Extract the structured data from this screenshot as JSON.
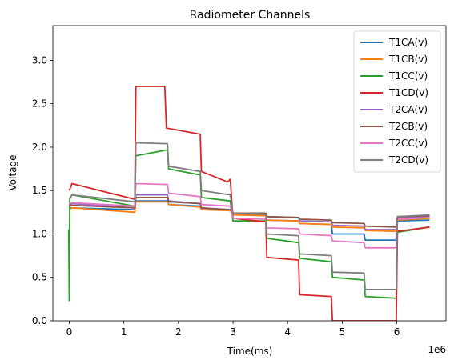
{
  "chart_data": {
    "type": "line",
    "title": "Radiometer Channels",
    "xlabel": "Time(ms)",
    "ylabel": "Voltage",
    "x_offset_label": "1e6",
    "xlim": [
      -300000,
      6900000
    ],
    "ylim": [
      0,
      3.4
    ],
    "xticks": [
      0,
      1000000,
      2000000,
      3000000,
      4000000,
      5000000,
      6000000
    ],
    "xtick_labels": [
      "0",
      "1",
      "2",
      "3",
      "4",
      "5",
      "6"
    ],
    "yticks": [
      0,
      0.5,
      1.0,
      1.5,
      2.0,
      2.5,
      3.0
    ],
    "ytick_labels": [
      "0.0",
      "0.5",
      "1.0",
      "1.5",
      "2.0",
      "2.5",
      "3.0"
    ],
    "grid": false,
    "legend_position": "top-right",
    "series": [
      {
        "name": "T1CA(v)",
        "color": "#1f77b4",
        "points": [
          [
            0,
            1.3
          ],
          [
            50000,
            1.3
          ],
          [
            1200000,
            1.28
          ],
          [
            1220000,
            1.38
          ],
          [
            1800000,
            1.38
          ],
          [
            1820000,
            1.34
          ],
          [
            2400000,
            1.32
          ],
          [
            2420000,
            1.28
          ],
          [
            2950000,
            1.28
          ],
          [
            3000000,
            1.22
          ],
          [
            3600000,
            1.22
          ],
          [
            3620000,
            1.16
          ],
          [
            4200000,
            1.15
          ],
          [
            4220000,
            1.12
          ],
          [
            4800000,
            1.11
          ],
          [
            4820000,
            1.0
          ],
          [
            5400000,
            1.0
          ],
          [
            5420000,
            0.93
          ],
          [
            5990000,
            0.93
          ],
          [
            6010000,
            1.15
          ],
          [
            6600000,
            1.16
          ]
        ]
      },
      {
        "name": "T1CB(v)",
        "color": "#ff7f0e",
        "points": [
          [
            0,
            1.28
          ],
          [
            50000,
            1.3
          ],
          [
            1200000,
            1.25
          ],
          [
            1220000,
            1.37
          ],
          [
            1800000,
            1.37
          ],
          [
            1820000,
            1.34
          ],
          [
            2400000,
            1.31
          ],
          [
            2420000,
            1.28
          ],
          [
            2950000,
            1.27
          ],
          [
            3000000,
            1.22
          ],
          [
            3600000,
            1.21
          ],
          [
            3620000,
            1.16
          ],
          [
            4200000,
            1.15
          ],
          [
            4220000,
            1.12
          ],
          [
            4800000,
            1.11
          ],
          [
            4820000,
            1.08
          ],
          [
            5400000,
            1.07
          ],
          [
            5420000,
            1.04
          ],
          [
            5990000,
            1.03
          ],
          [
            6010000,
            1.16
          ],
          [
            6600000,
            1.18
          ]
        ]
      },
      {
        "name": "T1CC(v)",
        "color": "#2ca02c",
        "points": [
          [
            -10000,
            1.05
          ],
          [
            0,
            0.23
          ],
          [
            10000,
            1.4
          ],
          [
            50000,
            1.45
          ],
          [
            1200000,
            1.32
          ],
          [
            1220000,
            1.9
          ],
          [
            1800000,
            1.97
          ],
          [
            1820000,
            1.75
          ],
          [
            2400000,
            1.68
          ],
          [
            2420000,
            1.42
          ],
          [
            2950000,
            1.38
          ],
          [
            3000000,
            1.15
          ],
          [
            3600000,
            1.15
          ],
          [
            3620000,
            0.95
          ],
          [
            4200000,
            0.9
          ],
          [
            4220000,
            0.72
          ],
          [
            4800000,
            0.68
          ],
          [
            4820000,
            0.5
          ],
          [
            5400000,
            0.47
          ],
          [
            5420000,
            0.28
          ],
          [
            5990000,
            0.26
          ],
          [
            6010000,
            1.02
          ],
          [
            6600000,
            1.08
          ]
        ]
      },
      {
        "name": "T1CD(v)",
        "color": "#d62728",
        "points": [
          [
            0,
            1.5
          ],
          [
            50000,
            1.58
          ],
          [
            1200000,
            1.4
          ],
          [
            1220000,
            2.7
          ],
          [
            1750000,
            2.7
          ],
          [
            1780000,
            2.22
          ],
          [
            2400000,
            2.15
          ],
          [
            2420000,
            1.72
          ],
          [
            2900000,
            1.6
          ],
          [
            2950000,
            1.63
          ],
          [
            3000000,
            1.18
          ],
          [
            3600000,
            1.14
          ],
          [
            3620000,
            0.73
          ],
          [
            4200000,
            0.7
          ],
          [
            4220000,
            0.3
          ],
          [
            4800000,
            0.28
          ],
          [
            4820000,
            0
          ],
          [
            5990000,
            0
          ],
          [
            6010000,
            1.03
          ],
          [
            6600000,
            1.08
          ]
        ]
      },
      {
        "name": "T2CA(v)",
        "color": "#9467bd",
        "points": [
          [
            0,
            1.33
          ],
          [
            50000,
            1.35
          ],
          [
            1200000,
            1.3
          ],
          [
            1220000,
            1.45
          ],
          [
            1800000,
            1.45
          ],
          [
            1820000,
            1.38
          ],
          [
            2400000,
            1.35
          ],
          [
            2420000,
            1.3
          ],
          [
            2950000,
            1.28
          ],
          [
            3000000,
            1.24
          ],
          [
            3600000,
            1.23
          ],
          [
            3620000,
            1.2
          ],
          [
            4200000,
            1.19
          ],
          [
            4220000,
            1.15
          ],
          [
            4800000,
            1.14
          ],
          [
            4820000,
            1.1
          ],
          [
            5400000,
            1.09
          ],
          [
            5420000,
            1.05
          ],
          [
            5990000,
            1.05
          ],
          [
            6010000,
            1.19
          ],
          [
            6600000,
            1.2
          ]
        ]
      },
      {
        "name": "T2CB(v)",
        "color": "#8c564b",
        "points": [
          [
            0,
            1.32
          ],
          [
            50000,
            1.33
          ],
          [
            1200000,
            1.3
          ],
          [
            1220000,
            1.42
          ],
          [
            1800000,
            1.42
          ],
          [
            1820000,
            1.37
          ],
          [
            2400000,
            1.35
          ],
          [
            2420000,
            1.3
          ],
          [
            2950000,
            1.28
          ],
          [
            3000000,
            1.24
          ],
          [
            3600000,
            1.24
          ],
          [
            3620000,
            1.2
          ],
          [
            4200000,
            1.19
          ],
          [
            4220000,
            1.17
          ],
          [
            4800000,
            1.16
          ],
          [
            4820000,
            1.13
          ],
          [
            5400000,
            1.12
          ],
          [
            5420000,
            1.09
          ],
          [
            5990000,
            1.08
          ],
          [
            6010000,
            1.2
          ],
          [
            6600000,
            1.21
          ]
        ]
      },
      {
        "name": "T2CC(v)",
        "color": "#e377c2",
        "points": [
          [
            0,
            1.35
          ],
          [
            50000,
            1.36
          ],
          [
            1200000,
            1.32
          ],
          [
            1220000,
            1.58
          ],
          [
            1800000,
            1.57
          ],
          [
            1820000,
            1.47
          ],
          [
            2400000,
            1.43
          ],
          [
            2420000,
            1.34
          ],
          [
            2950000,
            1.32
          ],
          [
            3000000,
            1.18
          ],
          [
            3600000,
            1.17
          ],
          [
            3620000,
            1.07
          ],
          [
            4200000,
            1.06
          ],
          [
            4220000,
            1.0
          ],
          [
            4800000,
            0.98
          ],
          [
            4820000,
            0.92
          ],
          [
            5400000,
            0.9
          ],
          [
            5420000,
            0.84
          ],
          [
            5990000,
            0.84
          ],
          [
            6010000,
            1.17
          ],
          [
            6600000,
            1.19
          ]
        ]
      },
      {
        "name": "T2CD(v)",
        "color": "#7f7f7f",
        "points": [
          [
            0,
            1.4
          ],
          [
            50000,
            1.45
          ],
          [
            1200000,
            1.37
          ],
          [
            1220000,
            2.05
          ],
          [
            1800000,
            2.04
          ],
          [
            1820000,
            1.78
          ],
          [
            2400000,
            1.72
          ],
          [
            2420000,
            1.5
          ],
          [
            2950000,
            1.45
          ],
          [
            3000000,
            1.24
          ],
          [
            3600000,
            1.23
          ],
          [
            3620000,
            1.0
          ],
          [
            4200000,
            0.98
          ],
          [
            4220000,
            0.77
          ],
          [
            4800000,
            0.75
          ],
          [
            4820000,
            0.56
          ],
          [
            5400000,
            0.55
          ],
          [
            5420000,
            0.36
          ],
          [
            5990000,
            0.36
          ],
          [
            6010000,
            1.2
          ],
          [
            6600000,
            1.22
          ]
        ]
      }
    ]
  }
}
